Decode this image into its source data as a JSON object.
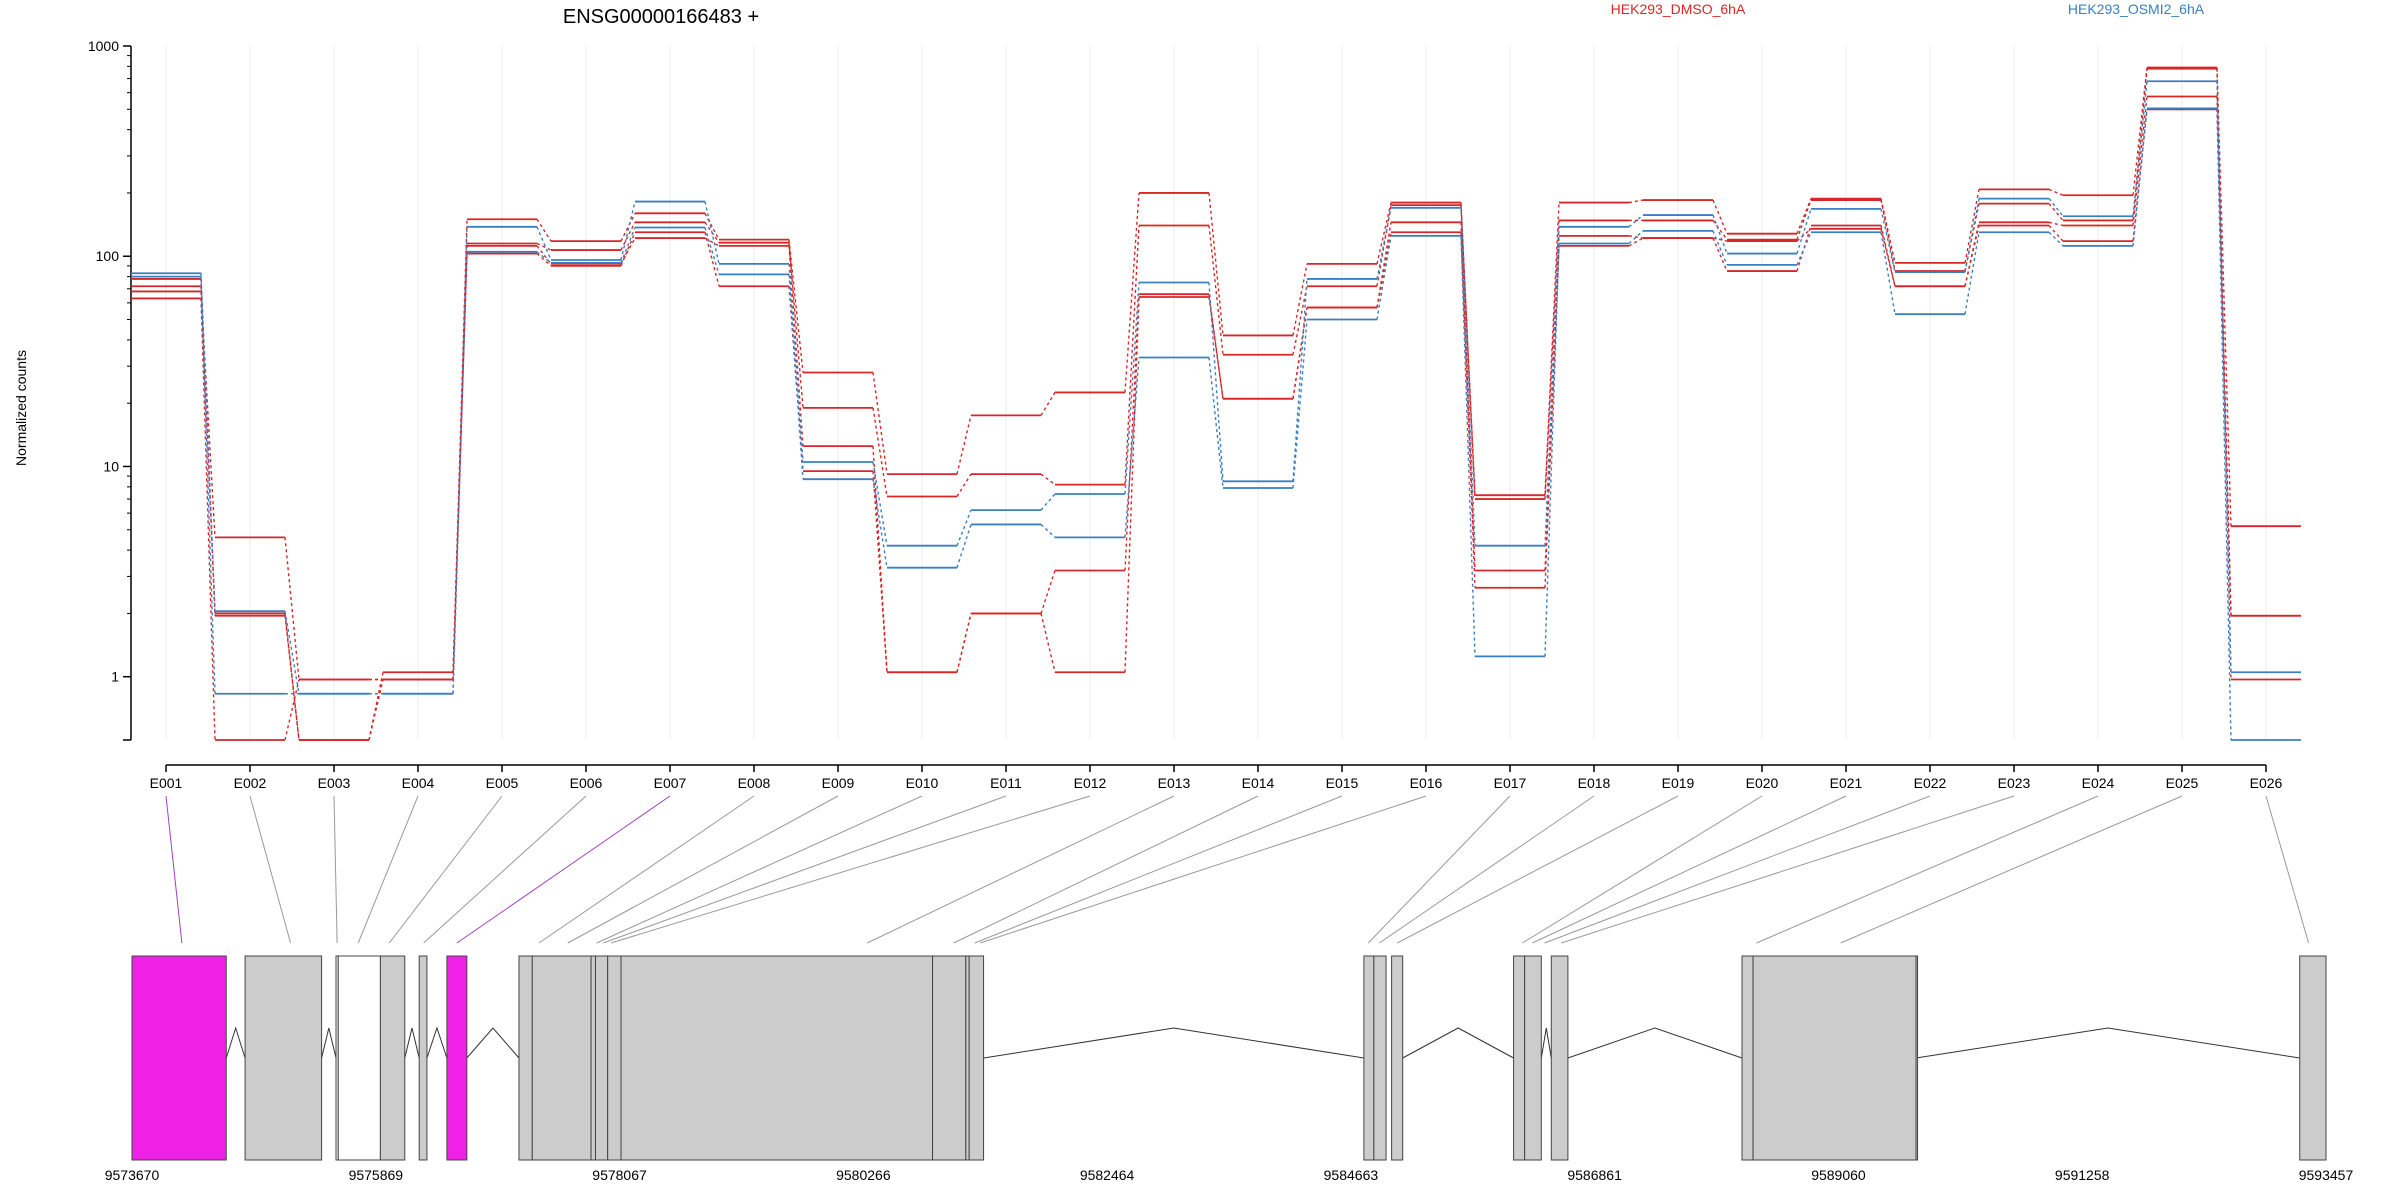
{
  "chart_data": {
    "type": "line",
    "title": "ENSG00000166483 +",
    "ylabel": "Normalized counts",
    "yscale": "log",
    "ylim": [
      0.5,
      1000
    ],
    "yticks": [
      {
        "v": 1,
        "label": "1"
      },
      {
        "v": 10,
        "label": "10"
      },
      {
        "v": 100,
        "label": "100"
      },
      {
        "v": 1000,
        "label": "1000"
      }
    ],
    "categories": [
      "E001",
      "E002",
      "E003",
      "E004",
      "E005",
      "E006",
      "E007",
      "E008",
      "E009",
      "E010",
      "E011",
      "E012",
      "E013",
      "E014",
      "E015",
      "E016",
      "E017",
      "E018",
      "E019",
      "E020",
      "E021",
      "E022",
      "E023",
      "E024",
      "E025",
      "E026"
    ],
    "legend": [
      {
        "name": "HEK293_DMSO_6hA",
        "color": "#d62728"
      },
      {
        "name": "HEK293_OSMI2_6hA",
        "color": "#3a7fc1"
      }
    ],
    "series": [
      {
        "group": 0,
        "values": [
          63,
          0.5,
          0.97,
          0.97,
          150,
          118,
          160,
          120,
          28,
          9.2,
          17.5,
          22.5,
          200,
          42,
          92,
          180,
          7.3,
          180,
          185,
          128,
          188,
          93,
          208,
          195,
          790,
          5.2
        ]
      },
      {
        "group": 0,
        "values": [
          68,
          4.6,
          0.97,
          0.97,
          115,
          107,
          145,
          116,
          19,
          7.2,
          9.2,
          8.2,
          140,
          34,
          72,
          175,
          7.0,
          148,
          148,
          120,
          185,
          85,
          178,
          148,
          780,
          0.97
        ]
      },
      {
        "group": 0,
        "values": [
          72,
          2.0,
          0.5,
          0.97,
          112,
          92,
          122,
          112,
          12.5,
          1.05,
          2.0,
          3.2,
          66,
          21,
          57,
          145,
          3.2,
          125,
          122,
          85,
          140,
          72,
          145,
          140,
          575,
          1.95
        ]
      },
      {
        "group": 0,
        "values": [
          78,
          1.95,
          0.5,
          1.05,
          103,
          90,
          130,
          72,
          9.5,
          1.05,
          2.0,
          1.05,
          64,
          21,
          57,
          130,
          2.65,
          112,
          122,
          118,
          135,
          72,
          140,
          118,
          500,
          1.95
        ]
      },
      {
        "group": 1,
        "values": [
          83,
          2.05,
          0.83,
          0.83,
          138,
          96,
          182,
          92,
          10.5,
          4.2,
          6.2,
          7.4,
          75,
          8.5,
          78,
          170,
          4.2,
          138,
          157,
          103,
          168,
          84,
          188,
          155,
          680,
          1.05
        ]
      },
      {
        "group": 1,
        "values": [
          80,
          0.83,
          0.83,
          0.83,
          105,
          93,
          137,
          82,
          8.7,
          3.3,
          5.3,
          4.6,
          33,
          7.9,
          50,
          125,
          1.25,
          115,
          132,
          91,
          130,
          53,
          130,
          112,
          505,
          0.5
        ]
      }
    ],
    "gene_model": {
      "coord_ticks": [
        "9573670",
        "9575869",
        "9578067",
        "9580266",
        "9582464",
        "9584663",
        "9586861",
        "9589060",
        "9591258",
        "9593457"
      ],
      "coord_range": [
        9573670,
        9593457
      ],
      "exons": [
        {
          "id": "E001",
          "start": 9573670,
          "end": 9574520,
          "fill": "#f020e6"
        },
        {
          "id": "E002",
          "start": 9574690,
          "end": 9575380,
          "fill": "#cccccc"
        },
        {
          "id": "E003",
          "start": 9575510,
          "end": 9575530,
          "fill": "#ffffff"
        },
        {
          "id": "E004",
          "start": 9575530,
          "end": 9575910,
          "fill": "#ffffff"
        },
        {
          "id": "E005",
          "start": 9575910,
          "end": 9576130,
          "fill": "#cccccc"
        },
        {
          "id": "E006",
          "start": 9576260,
          "end": 9576330,
          "fill": "#cccccc"
        },
        {
          "id": "E007",
          "start": 9576510,
          "end": 9576690,
          "fill": "#f020e6"
        },
        {
          "id": "E008",
          "start": 9577160,
          "end": 9577280,
          "fill": "#cccccc"
        },
        {
          "id": "E009",
          "start": 9577280,
          "end": 9577810,
          "fill": "#cccccc"
        },
        {
          "id": "E010",
          "start": 9577810,
          "end": 9577850,
          "fill": "#cccccc"
        },
        {
          "id": "E011",
          "start": 9577850,
          "end": 9577960,
          "fill": "#cccccc"
        },
        {
          "id": "E012",
          "start": 9577960,
          "end": 9578080,
          "fill": "#cccccc"
        },
        {
          "id": "E013",
          "start": 9578080,
          "end": 9580890,
          "fill": "#cccccc"
        },
        {
          "id": "E014",
          "start": 9580890,
          "end": 9581190,
          "fill": "#cccccc"
        },
        {
          "id": "E015",
          "start": 9581190,
          "end": 9581220,
          "fill": "#cccccc"
        },
        {
          "id": "E016",
          "start": 9581220,
          "end": 9581350,
          "fill": "#cccccc"
        },
        {
          "id": "E017",
          "start": 9584780,
          "end": 9584870,
          "fill": "#cccccc"
        },
        {
          "id": "E018",
          "start": 9584870,
          "end": 9584980,
          "fill": "#cccccc"
        },
        {
          "id": "E019",
          "start": 9585030,
          "end": 9585130,
          "fill": "#cccccc"
        },
        {
          "id": "E020",
          "start": 9586130,
          "end": 9586230,
          "fill": "#cccccc"
        },
        {
          "id": "E021",
          "start": 9586230,
          "end": 9586380,
          "fill": "#cccccc"
        },
        {
          "id": "E022",
          "start": 9586470,
          "end": 9586620,
          "fill": "#cccccc"
        },
        {
          "id": "E023",
          "start": 9588190,
          "end": 9588290,
          "fill": "#cccccc"
        },
        {
          "id": "E024",
          "start": 9588290,
          "end": 9589760,
          "fill": "#cccccc"
        },
        {
          "id": "E025",
          "start": 9589760,
          "end": 9589760,
          "fill": "#cccccc"
        },
        {
          "id": "E026",
          "start": 9593220,
          "end": 9593457,
          "fill": "#cccccc"
        }
      ],
      "introns": [
        [
          9574520,
          9574690
        ],
        [
          9575380,
          9575510
        ],
        [
          9576130,
          9576260
        ],
        [
          9576330,
          9576510
        ],
        [
          9576690,
          9577160
        ],
        [
          9581350,
          9584780
        ],
        [
          9585130,
          9586130
        ],
        [
          9586380,
          9586470
        ],
        [
          9586620,
          9588190
        ],
        [
          9589760,
          9593220
        ]
      ],
      "connector_targets": [
        9574120,
        9575100,
        9575520,
        9575710,
        9575990,
        9576300,
        9576600,
        9577340,
        9577600,
        9577860,
        9577920,
        9577990,
        9580300,
        9581080,
        9581270,
        9581320,
        9584820,
        9584920,
        9585080,
        9586210,
        9586300,
        9586410,
        9586560,
        9588320,
        9589080,
        9593300
      ],
      "highlighted_connectors": [
        "E001",
        "E007"
      ]
    }
  }
}
